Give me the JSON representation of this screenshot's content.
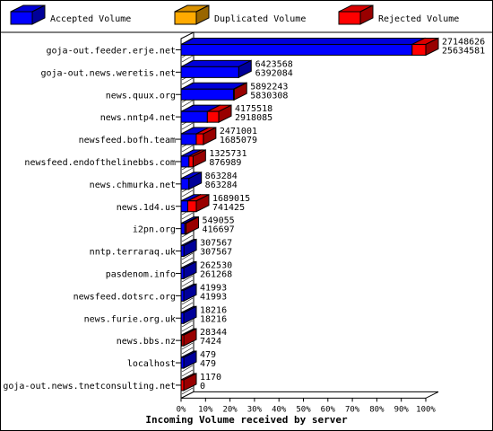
{
  "chart_data": {
    "type": "bar",
    "orientation": "horizontal",
    "stacked": true,
    "three_d": true,
    "xlabel": "Incoming Volume received by server",
    "x_ticks": [
      "0%",
      "10%",
      "20%",
      "30%",
      "40%",
      "50%",
      "60%",
      "70%",
      "80%",
      "90%",
      "100%"
    ],
    "xlim": [
      0,
      100
    ],
    "legend_position": "top",
    "legend": [
      {
        "name": "Accepted Volume",
        "color": "#0000ff"
      },
      {
        "name": "Duplicated Volume",
        "color": "#ffaa00"
      },
      {
        "name": "Rejected Volume",
        "color": "#ff0000"
      }
    ],
    "categories": [
      "goja-out.feeder.erje.net",
      "goja-out.news.weretis.net",
      "news.quux.org",
      "news.nntp4.net",
      "newsfeed.bofh.team",
      "newsfeed.endofthelinebbs.com",
      "news.chmurka.net",
      "news.1d4.us",
      "i2pn.org",
      "nntp.terraraq.uk",
      "pasdenom.info",
      "newsfeed.dotsrc.org",
      "news.furie.org.uk",
      "news.bbs.nz",
      "localhost",
      "goja-out.news.tnetconsulting.net"
    ],
    "total_volume": [
      27148626,
      6423568,
      5892243,
      4175518,
      2471001,
      1325731,
      863284,
      1689015,
      549055,
      307567,
      262530,
      41993,
      18216,
      28344,
      479,
      1170
    ],
    "accepted_volume": [
      25634581,
      6392084,
      5830308,
      2918085,
      1685079,
      876989,
      863284,
      741425,
      416697,
      307567,
      261268,
      41993,
      18216,
      7424,
      479,
      0
    ]
  }
}
